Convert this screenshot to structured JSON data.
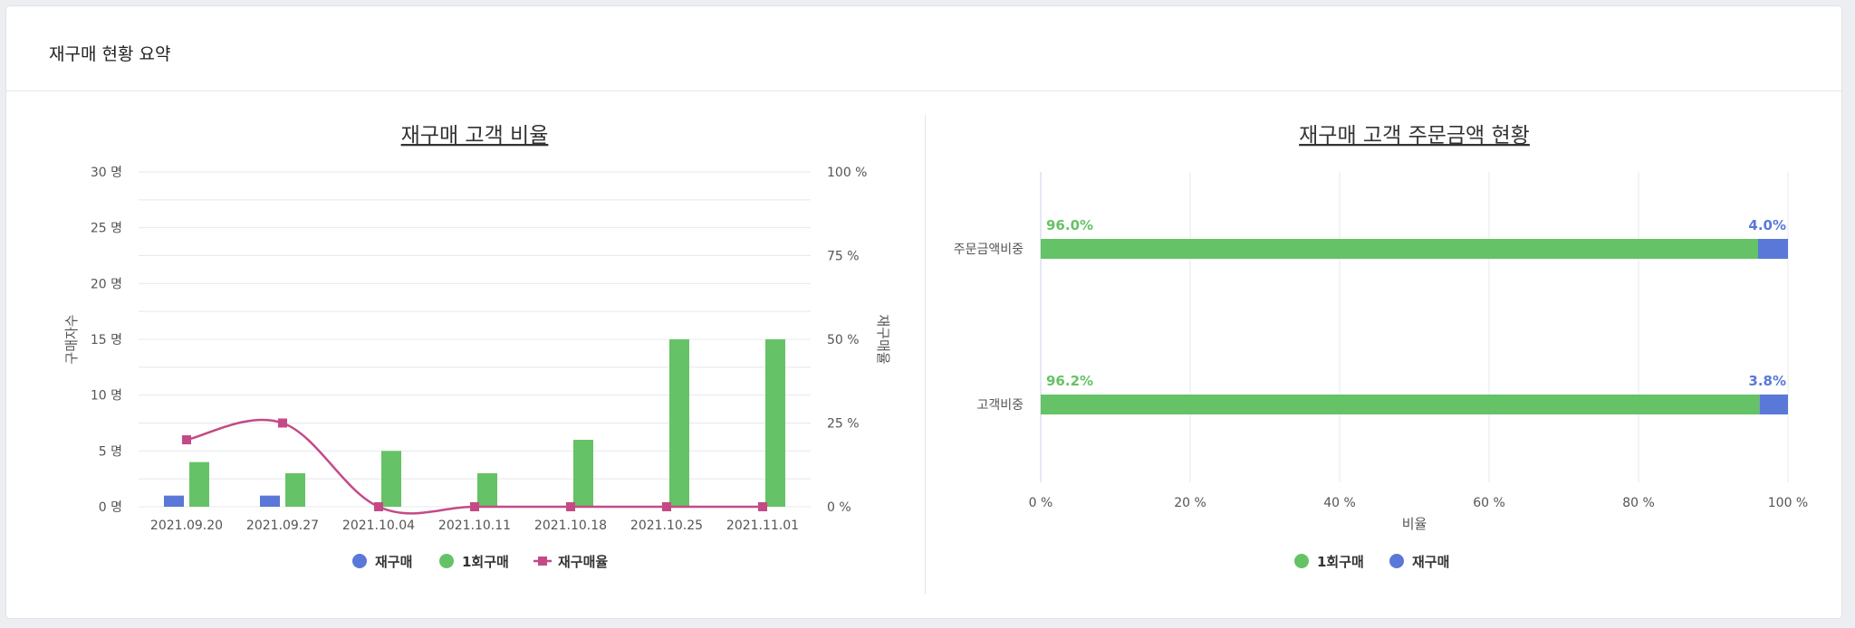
{
  "header": {
    "title": "재구매 현황 요약"
  },
  "colors": {
    "repurchase": "#5a78d8",
    "single": "#66c266",
    "rate": "#c44a86"
  },
  "chart_data": [
    {
      "type": "bar",
      "title": "재구매 고객 비율",
      "categories": [
        "2021.09.20",
        "2021.09.27",
        "2021.10.04",
        "2021.10.11",
        "2021.10.18",
        "2021.10.25",
        "2021.11.01"
      ],
      "ylabel": "구매자수",
      "y2label": "재구매율",
      "ylim": [
        0,
        30
      ],
      "y2lim": [
        0,
        100
      ],
      "yticks": [
        {
          "v": 0,
          "label": "0 명"
        },
        {
          "v": 5,
          "label": "5 명"
        },
        {
          "v": 10,
          "label": "10 명"
        },
        {
          "v": 15,
          "label": "15 명"
        },
        {
          "v": 20,
          "label": "20 명"
        },
        {
          "v": 25,
          "label": "25 명"
        },
        {
          "v": 30,
          "label": "30 명"
        }
      ],
      "y2ticks": [
        {
          "v": 0,
          "label": "0 %"
        },
        {
          "v": 25,
          "label": "25 %"
        },
        {
          "v": 50,
          "label": "50 %"
        },
        {
          "v": 75,
          "label": "75 %"
        },
        {
          "v": 100,
          "label": "100 %"
        }
      ],
      "series": [
        {
          "name": "재구매",
          "type": "bar",
          "values": [
            1,
            1,
            0,
            0,
            0,
            0,
            0
          ]
        },
        {
          "name": "1회구매",
          "type": "bar",
          "values": [
            4,
            3,
            5,
            3,
            6,
            15,
            15
          ]
        },
        {
          "name": "재구매율",
          "type": "line",
          "axis": "right",
          "values": [
            20,
            25,
            0,
            0,
            0,
            0,
            0
          ]
        }
      ],
      "legend": "bottom",
      "grid": true
    },
    {
      "type": "bar",
      "orientation": "horizontal",
      "stacked": "percent",
      "title": "재구매 고객 주문금액 현황",
      "categories": [
        "주문금액비중",
        "고객비중"
      ],
      "xlabel": "비율",
      "xlim": [
        0,
        100
      ],
      "xticks": [
        {
          "v": 0,
          "label": "0 %"
        },
        {
          "v": 20,
          "label": "20 %"
        },
        {
          "v": 40,
          "label": "40 %"
        },
        {
          "v": 60,
          "label": "60 %"
        },
        {
          "v": 80,
          "label": "80 %"
        },
        {
          "v": 100,
          "label": "100 %"
        }
      ],
      "series": [
        {
          "name": "1회구매",
          "values": [
            96.0,
            96.2
          ],
          "labels": [
            "96.0%",
            "96.2%"
          ]
        },
        {
          "name": "재구매",
          "values": [
            4.0,
            3.8
          ],
          "labels": [
            "4.0%",
            "3.8%"
          ]
        }
      ],
      "legend": "bottom",
      "grid": true
    }
  ]
}
